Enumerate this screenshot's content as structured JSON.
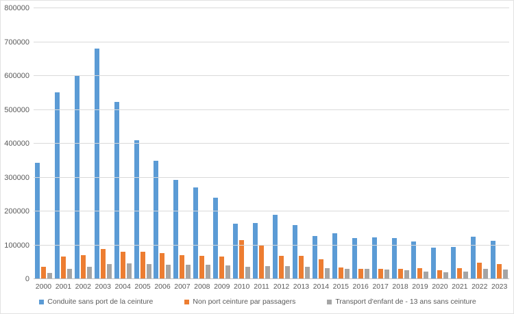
{
  "chart_data": {
    "type": "bar",
    "title": "",
    "xlabel": "",
    "ylabel": "",
    "categories": [
      "2000",
      "2001",
      "2002",
      "2003",
      "2004",
      "2005",
      "2006",
      "2007",
      "2008",
      "2009",
      "2010",
      "2011",
      "2012",
      "2013",
      "2014",
      "2015",
      "2016",
      "2017",
      "2018",
      "2019",
      "2020",
      "2021",
      "2022",
      "2023"
    ],
    "series": [
      {
        "name": "Conduite sans port de la ceinture",
        "color": "#5B9BD5",
        "values": [
          343000,
          552000,
          600000,
          680000,
          524000,
          410000,
          349000,
          293000,
          270000,
          240000,
          163000,
          165000,
          190000,
          160000,
          128000,
          135000,
          122000,
          124000,
          121000,
          111000,
          93000,
          95000,
          126000,
          113000
        ]
      },
      {
        "name": "Non port ceinture par passagers",
        "color": "#ED7D31",
        "values": [
          36000,
          66000,
          70000,
          88000,
          81000,
          80000,
          76000,
          70000,
          68000,
          66000,
          115000,
          101000,
          69000,
          68000,
          59000,
          34000,
          30000,
          30000,
          30000,
          33000,
          27000,
          32000,
          48000,
          45000
        ]
      },
      {
        "name": "Transport d'enfant de - 13 ans sans ceinture",
        "color": "#A5A5A5",
        "values": [
          18000,
          31000,
          37000,
          44000,
          47000,
          45000,
          43000,
          42000,
          42000,
          41000,
          36000,
          38000,
          39000,
          36000,
          32000,
          31000,
          30000,
          28000,
          27000,
          23000,
          21000,
          22000,
          30000,
          28000
        ]
      }
    ],
    "ylim": [
      0,
      800000
    ],
    "ytick_interval": 100000,
    "ytick_labels": [
      "0",
      "100000",
      "200000",
      "300000",
      "400000",
      "500000",
      "600000",
      "700000",
      "800000"
    ],
    "grid": true,
    "legend_position": "bottom"
  },
  "colors": {
    "background": "#FFFFFF",
    "gridline": "#D9D9D9",
    "axis_line": "#BFBFBF",
    "text": "#595959",
    "border": "#E2E2E2"
  }
}
